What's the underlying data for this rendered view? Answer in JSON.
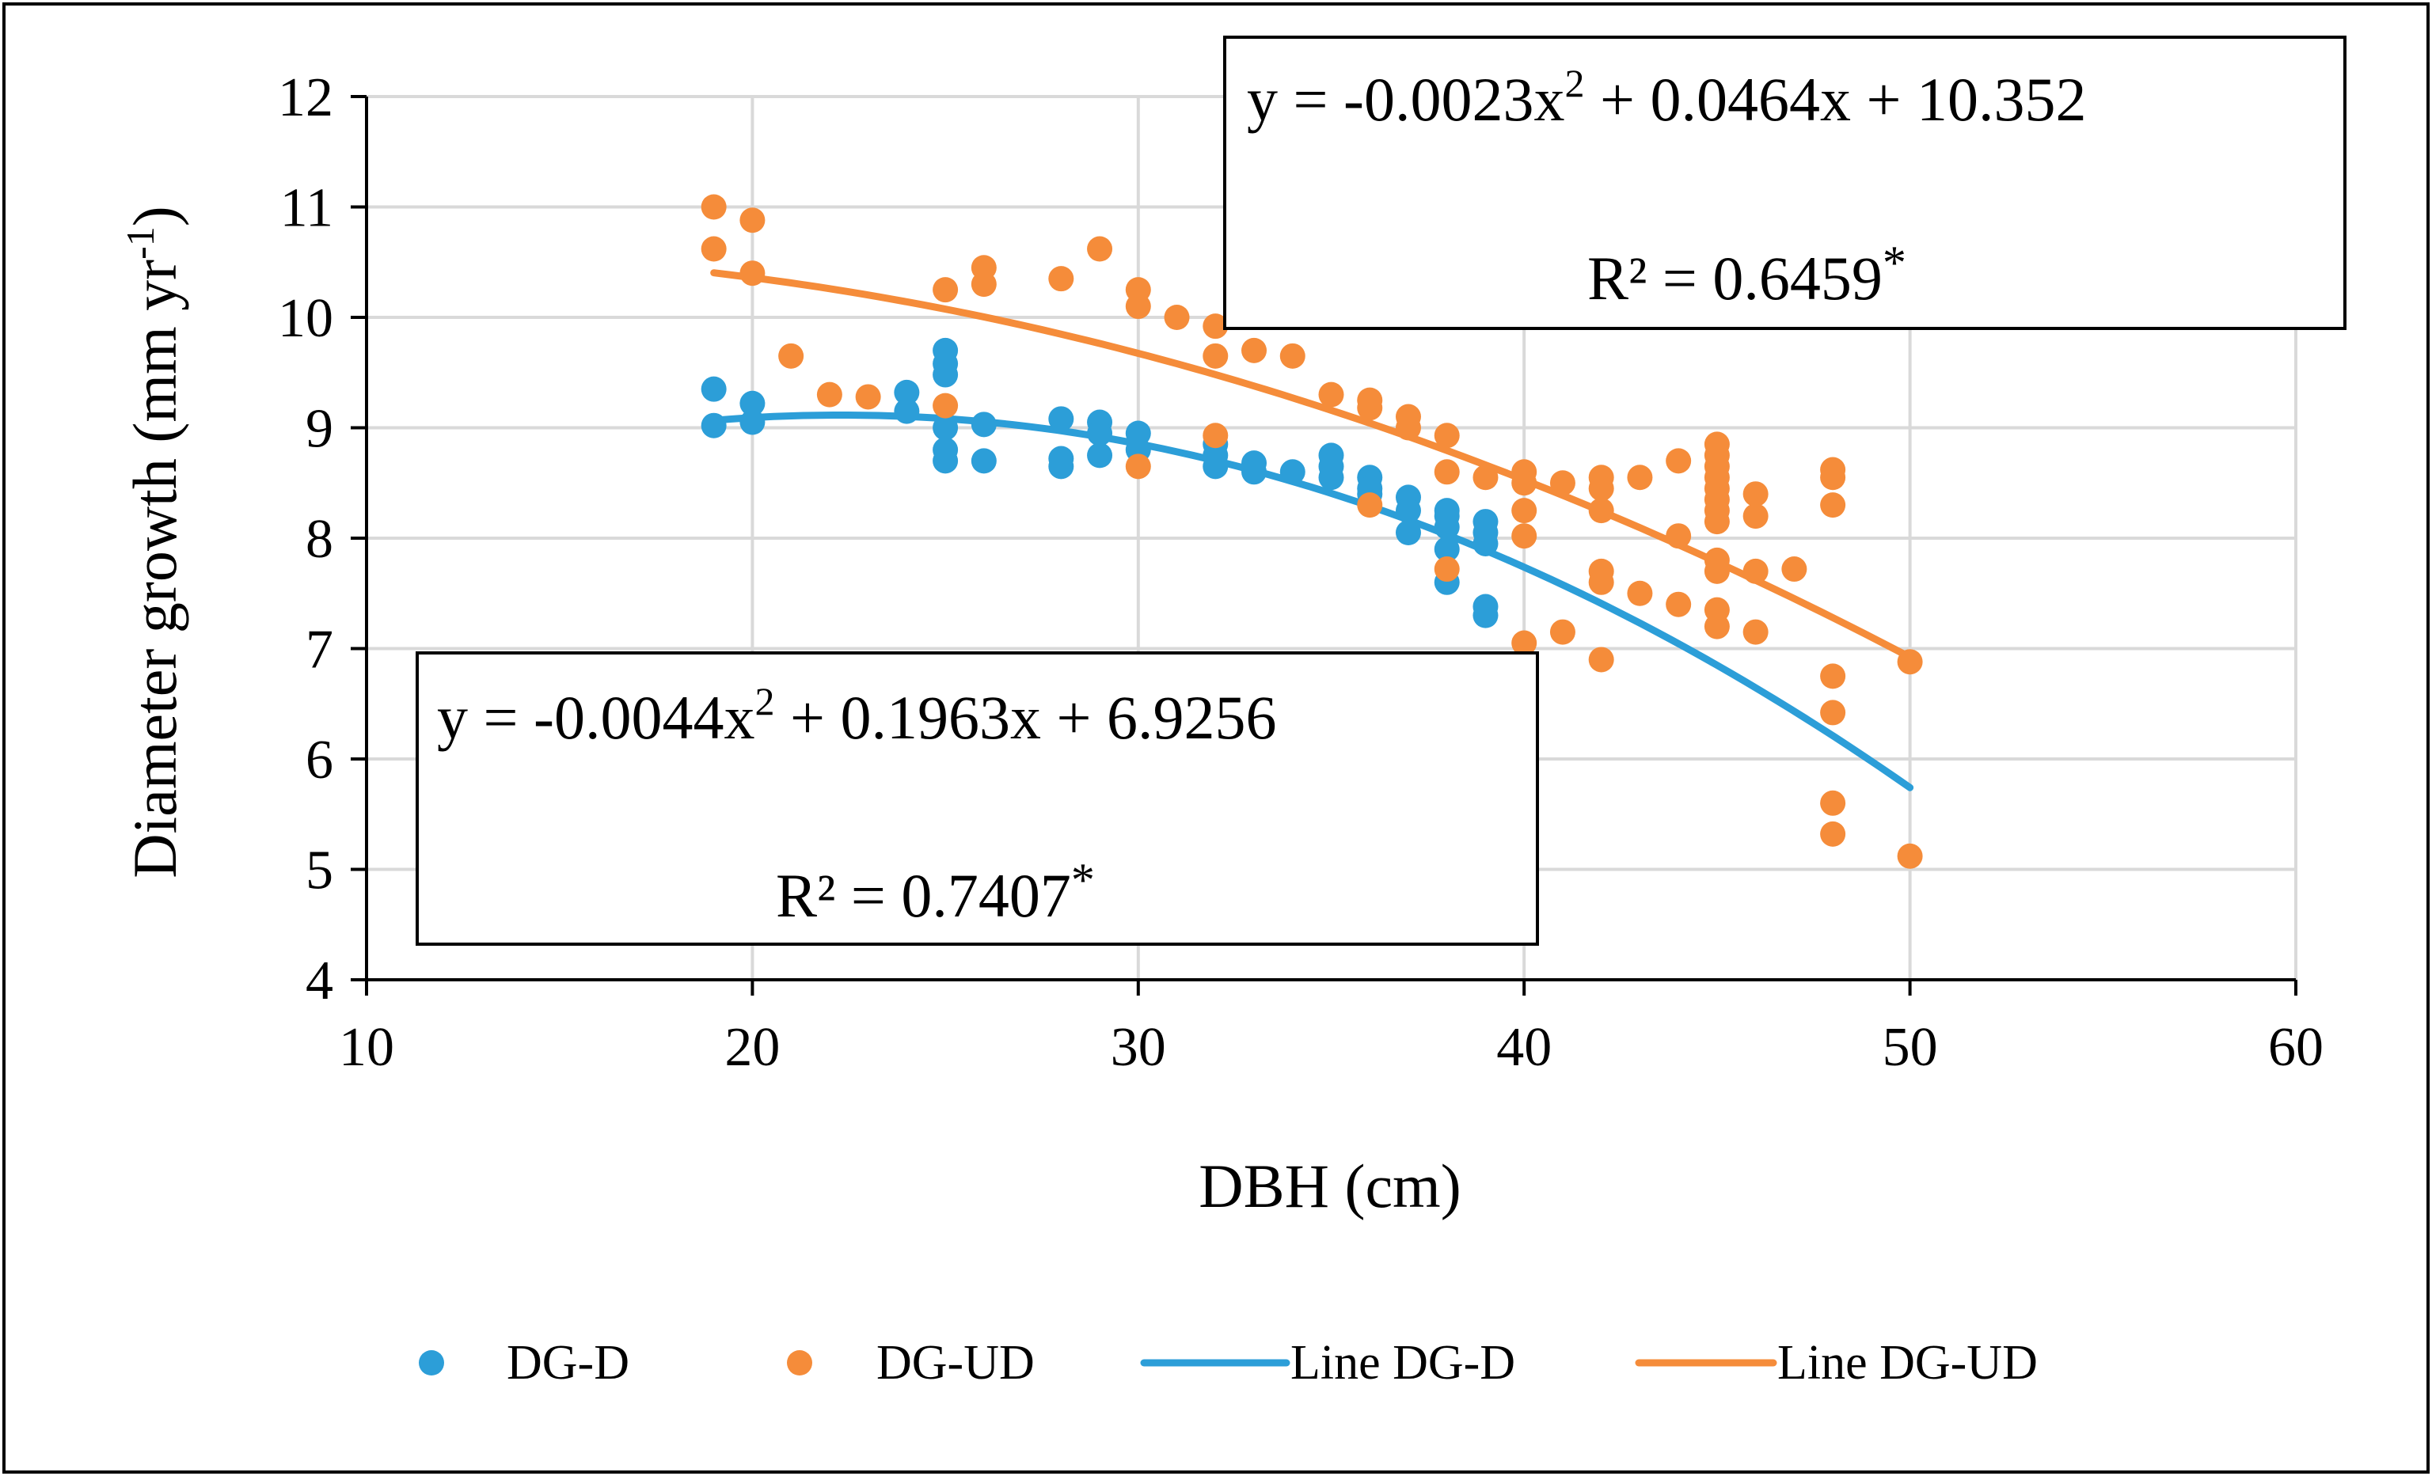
{
  "chart_data": {
    "type": "scatter",
    "title": "",
    "xlabel": "DBH (cm)",
    "ylabel": "Diameter growth (mm yr",
    "ylabel_sup": "-1",
    "ylabel_end": ")",
    "xlim": [
      10,
      60
    ],
    "ylim": [
      4,
      12
    ],
    "xticks": [
      10,
      20,
      30,
      40,
      50,
      60
    ],
    "yticks": [
      4,
      5,
      6,
      7,
      8,
      9,
      10,
      11,
      12
    ],
    "grid": true,
    "legend_position": "bottom",
    "colors": {
      "dgd": "#2C9ED8",
      "dgud": "#F58C3A",
      "grid": "#D9D9D9",
      "axis": "#000000"
    },
    "series": [
      {
        "name": "DG-D",
        "key": "dgd",
        "kind": "scatter",
        "points": [
          [
            19,
            9.35
          ],
          [
            19,
            9.02
          ],
          [
            20,
            9.22
          ],
          [
            20,
            9.05
          ],
          [
            24,
            9.32
          ],
          [
            24,
            9.15
          ],
          [
            25,
            9.7
          ],
          [
            25,
            9.58
          ],
          [
            25,
            9.48
          ],
          [
            25,
            9.0
          ],
          [
            25,
            8.8
          ],
          [
            25,
            8.7
          ],
          [
            26,
            9.03
          ],
          [
            26,
            8.7
          ],
          [
            28,
            9.08
          ],
          [
            28,
            8.72
          ],
          [
            28,
            8.65
          ],
          [
            29,
            9.05
          ],
          [
            29,
            8.95
          ],
          [
            29,
            8.75
          ],
          [
            30,
            8.95
          ],
          [
            30,
            8.8
          ],
          [
            32,
            8.85
          ],
          [
            32,
            8.75
          ],
          [
            32,
            8.65
          ],
          [
            33,
            8.68
          ],
          [
            33,
            8.6
          ],
          [
            34,
            8.6
          ],
          [
            35,
            8.75
          ],
          [
            35,
            8.65
          ],
          [
            35,
            8.55
          ],
          [
            36,
            8.55
          ],
          [
            36,
            8.45
          ],
          [
            36,
            8.4
          ],
          [
            37,
            8.37
          ],
          [
            37,
            8.25
          ],
          [
            37,
            8.05
          ],
          [
            38,
            8.25
          ],
          [
            38,
            8.2
          ],
          [
            38,
            8.1
          ],
          [
            38,
            7.9
          ],
          [
            38,
            7.6
          ],
          [
            39,
            8.15
          ],
          [
            39,
            8.05
          ],
          [
            39,
            7.95
          ],
          [
            39,
            7.38
          ],
          [
            39,
            7.3
          ]
        ]
      },
      {
        "name": "DG-UD",
        "key": "dgud",
        "kind": "scatter",
        "points": [
          [
            19,
            11.0
          ],
          [
            19,
            10.62
          ],
          [
            20,
            10.88
          ],
          [
            20,
            10.4
          ],
          [
            21,
            9.65
          ],
          [
            22,
            9.3
          ],
          [
            23,
            9.28
          ],
          [
            25,
            10.25
          ],
          [
            25,
            9.2
          ],
          [
            26,
            10.45
          ],
          [
            26,
            10.3
          ],
          [
            28,
            10.35
          ],
          [
            29,
            10.62
          ],
          [
            30,
            10.25
          ],
          [
            30,
            10.1
          ],
          [
            30,
            8.65
          ],
          [
            31,
            10.0
          ],
          [
            32,
            9.92
          ],
          [
            32,
            9.65
          ],
          [
            32,
            8.93
          ],
          [
            33,
            9.7
          ],
          [
            34,
            9.65
          ],
          [
            35,
            9.3
          ],
          [
            36,
            9.25
          ],
          [
            36,
            9.18
          ],
          [
            36,
            8.3
          ],
          [
            37,
            9.1
          ],
          [
            37,
            9.0
          ],
          [
            38,
            8.93
          ],
          [
            38,
            8.6
          ],
          [
            38,
            7.72
          ],
          [
            39,
            8.55
          ],
          [
            40,
            8.6
          ],
          [
            40,
            8.5
          ],
          [
            40,
            8.25
          ],
          [
            40,
            8.02
          ],
          [
            40,
            7.05
          ],
          [
            41,
            8.5
          ],
          [
            41,
            7.15
          ],
          [
            42,
            8.55
          ],
          [
            42,
            8.45
          ],
          [
            42,
            8.25
          ],
          [
            42,
            7.7
          ],
          [
            42,
            7.6
          ],
          [
            42,
            6.9
          ],
          [
            43,
            8.55
          ],
          [
            43,
            7.5
          ],
          [
            44,
            8.7
          ],
          [
            44,
            8.02
          ],
          [
            44,
            7.4
          ],
          [
            45,
            8.85
          ],
          [
            45,
            8.75
          ],
          [
            45,
            8.65
          ],
          [
            45,
            8.55
          ],
          [
            45,
            8.45
          ],
          [
            45,
            8.35
          ],
          [
            45,
            8.25
          ],
          [
            45,
            8.15
          ],
          [
            45,
            7.8
          ],
          [
            45,
            7.7
          ],
          [
            45,
            7.35
          ],
          [
            45,
            7.2
          ],
          [
            46,
            8.4
          ],
          [
            46,
            8.2
          ],
          [
            46,
            7.7
          ],
          [
            46,
            7.15
          ],
          [
            47,
            7.72
          ],
          [
            48,
            8.62
          ],
          [
            48,
            8.55
          ],
          [
            48,
            8.3
          ],
          [
            48,
            6.75
          ],
          [
            48,
            6.42
          ],
          [
            48,
            5.6
          ],
          [
            48,
            5.32
          ],
          [
            50,
            6.88
          ],
          [
            50,
            5.12
          ]
        ]
      },
      {
        "name": "Line DG-D",
        "key": "dgd",
        "kind": "trend",
        "coefficients": [
          -0.0044,
          0.1963,
          6.9256
        ],
        "x_range": [
          19,
          50
        ]
      },
      {
        "name": "Line DG-UD",
        "key": "dgud",
        "kind": "trend",
        "coefficients": [
          -0.0023,
          0.0464,
          10.352
        ],
        "x_range": [
          19,
          50
        ]
      }
    ],
    "annotations": {
      "ud": {
        "eq_main": "y = -0.0023x",
        "eq_sup": "2",
        "eq_tail": " + 0.0464x + 10.352",
        "r2_main": "R² = 0.6459",
        "r2_sup": "*"
      },
      "d": {
        "eq_main": "y = -0.0044x",
        "eq_sup": "2",
        "eq_tail": " + 0.1963x + 6.9256",
        "r2_main": "R² = 0.7407",
        "r2_sup": "*"
      }
    }
  }
}
